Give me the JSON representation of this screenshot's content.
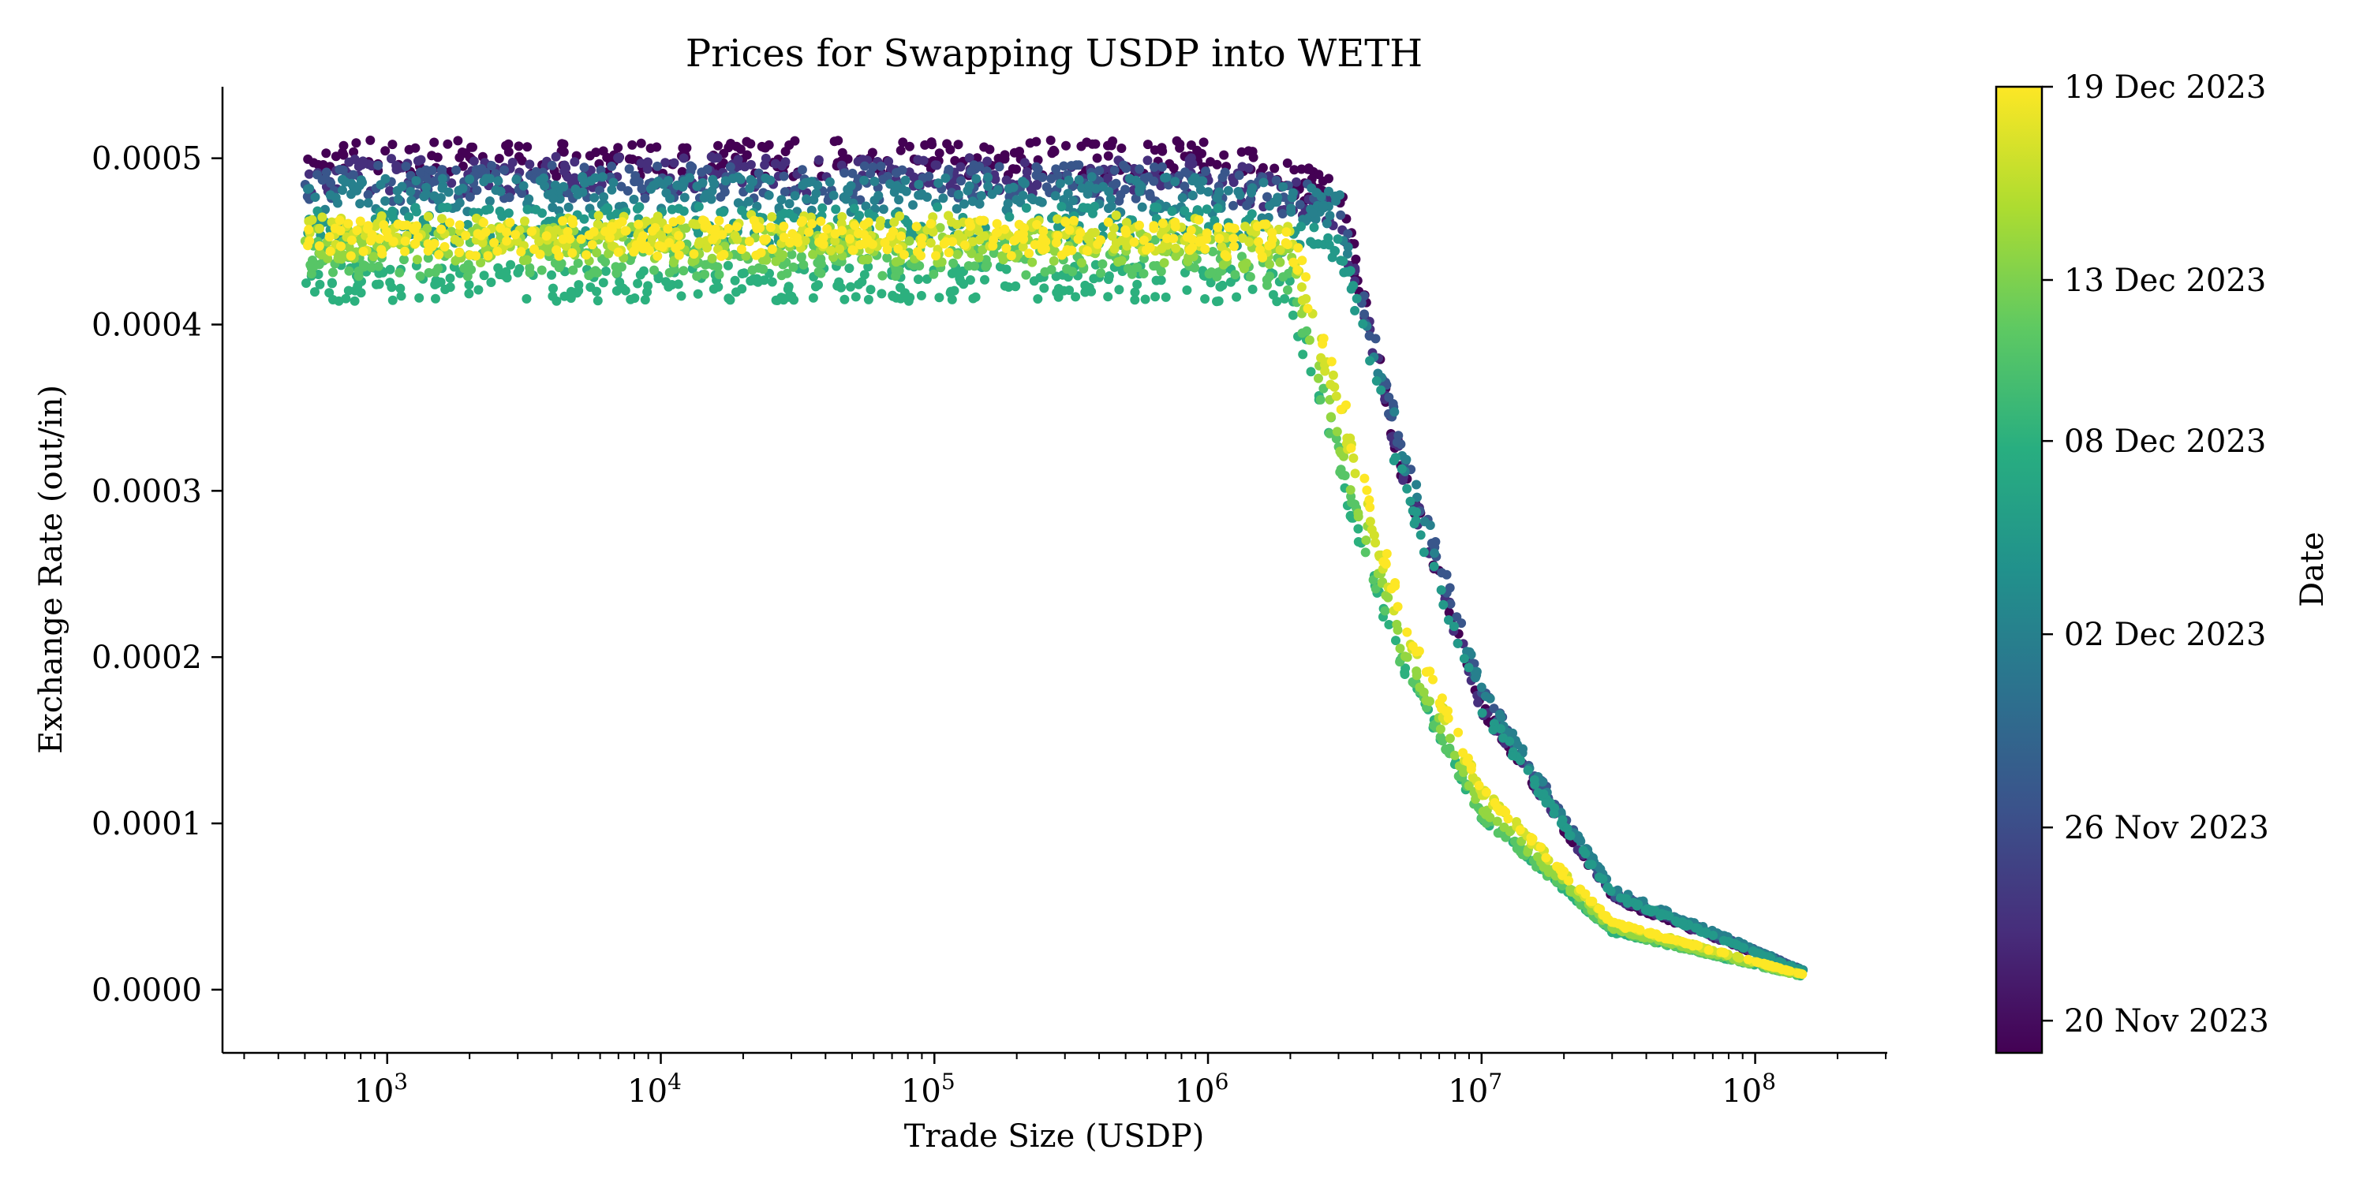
{
  "chart_data": {
    "type": "scatter",
    "title": "Prices for Swapping USDP into WETH",
    "xlabel": "Trade Size (USDP)",
    "ylabel": "Exchange Rate (out/in)",
    "xscale": "log",
    "xlim": [
      250,
      300000000
    ],
    "ylim": [
      -3.8e-05,
      0.000543
    ],
    "x_ticks": [
      {
        "value": 1000,
        "base": "10",
        "exp": "3"
      },
      {
        "value": 10000,
        "base": "10",
        "exp": "4"
      },
      {
        "value": 100000,
        "base": "10",
        "exp": "5"
      },
      {
        "value": 1000000,
        "base": "10",
        "exp": "6"
      },
      {
        "value": 10000000,
        "base": "10",
        "exp": "7"
      },
      {
        "value": 100000000,
        "base": "10",
        "exp": "8"
      }
    ],
    "y_ticks": [
      {
        "value": 0.0,
        "label": "0.0000"
      },
      {
        "value": 0.0001,
        "label": "0.0001"
      },
      {
        "value": 0.0002,
        "label": "0.0002"
      },
      {
        "value": 0.0003,
        "label": "0.0003"
      },
      {
        "value": 0.0004,
        "label": "0.0004"
      },
      {
        "value": 0.0005,
        "label": "0.0005"
      }
    ],
    "grid": false,
    "colormap": "viridis",
    "colorbar": {
      "label": "Date",
      "range": [
        "2023-11-19",
        "2023-12-19"
      ],
      "ticks": [
        {
          "date": "2023-11-20",
          "label": "20 Nov 2023"
        },
        {
          "date": "2023-11-26",
          "label": "26 Nov 2023"
        },
        {
          "date": "2023-12-02",
          "label": "02 Dec 2023"
        },
        {
          "date": "2023-12-08",
          "label": "08 Dec 2023"
        },
        {
          "date": "2023-12-13",
          "label": "13 Dec 2023"
        },
        {
          "date": "2023-12-19",
          "label": "19 Dec 2023"
        }
      ]
    },
    "series": [
      {
        "date": "2023-11-19",
        "rate": 0.0005,
        "knee": 3000000,
        "x": [
          500,
          1000,
          10000,
          100000,
          1000000,
          3000000,
          5000000,
          10000000,
          30000000,
          150000000
        ],
        "y": [
          0.0005,
          0.0005,
          0.0005,
          0.0005,
          0.0005,
          0.00048,
          0.00032,
          0.00017,
          5.5e-05,
          1.1e-05
        ]
      },
      {
        "date": "2023-11-23",
        "rate": 0.00049,
        "knee": 3100000,
        "x": [
          500,
          1000,
          10000,
          100000,
          1000000,
          3000000,
          5000000,
          10000000,
          30000000,
          150000000
        ],
        "y": [
          0.00049,
          0.00049,
          0.00049,
          0.00049,
          0.00049,
          0.00047,
          0.00032,
          0.00017,
          5.6e-05,
          1.1e-05
        ]
      },
      {
        "date": "2023-11-27",
        "rate": 0.000485,
        "knee": 3200000,
        "x": [
          500,
          1000,
          10000,
          100000,
          1000000,
          3000000,
          5000000,
          10000000,
          30000000,
          150000000
        ],
        "y": [
          0.000485,
          0.000485,
          0.000485,
          0.000485,
          0.000485,
          0.00047,
          0.00033,
          0.00018,
          5.8e-05,
          1.2e-05
        ]
      },
      {
        "date": "2023-12-02",
        "rate": 0.000478,
        "knee": 3300000,
        "x": [
          500,
          1000,
          10000,
          100000,
          1000000,
          3000000,
          5000000,
          10000000,
          30000000,
          150000000
        ],
        "y": [
          0.000478,
          0.000478,
          0.000478,
          0.000478,
          0.000478,
          0.00047,
          0.00033,
          0.00018,
          6e-05,
          1.2e-05
        ]
      },
      {
        "date": "2023-12-05",
        "rate": 0.00046,
        "knee": 3100000,
        "x": [
          500,
          1000,
          10000,
          100000,
          1000000,
          3000000,
          5000000,
          10000000,
          30000000,
          150000000
        ],
        "y": [
          0.00046,
          0.00046,
          0.00046,
          0.00046,
          0.00046,
          0.00045,
          0.00031,
          0.00017,
          5.7e-05,
          1.1e-05
        ]
      },
      {
        "date": "2023-12-08",
        "rate": 0.000425,
        "knee": 2300000,
        "x": [
          500,
          1000,
          10000,
          100000,
          1000000,
          2000000,
          3000000,
          5000000,
          10000000,
          30000000,
          150000000
        ],
        "y": [
          0.000425,
          0.000425,
          0.000425,
          0.000425,
          0.000425,
          0.00042,
          0.00031,
          0.0002,
          0.000105,
          3.5e-05,
          8e-06
        ]
      },
      {
        "date": "2023-12-11",
        "rate": 0.00044,
        "knee": 2300000,
        "x": [
          500,
          1000,
          10000,
          100000,
          1000000,
          2000000,
          3000000,
          5000000,
          10000000,
          30000000,
          150000000
        ],
        "y": [
          0.00044,
          0.00044,
          0.00044,
          0.00044,
          0.00044,
          0.00043,
          0.00032,
          0.0002,
          0.000105,
          3.5e-05,
          8e-06
        ]
      },
      {
        "date": "2023-12-14",
        "rate": 0.000448,
        "knee": 2500000,
        "x": [
          500,
          1000,
          10000,
          100000,
          1000000,
          2000000,
          3000000,
          5000000,
          10000000,
          30000000,
          150000000
        ],
        "y": [
          0.000448,
          0.000448,
          0.000448,
          0.000448,
          0.000448,
          0.00044,
          0.00033,
          0.00021,
          0.00011,
          3.7e-05,
          8e-06
        ]
      },
      {
        "date": "2023-12-17",
        "rate": 0.000455,
        "knee": 2600000,
        "x": [
          500,
          1000,
          10000,
          100000,
          1000000,
          2000000,
          3000000,
          5000000,
          10000000,
          30000000,
          150000000
        ],
        "y": [
          0.000455,
          0.000455,
          0.000455,
          0.000455,
          0.000455,
          0.00045,
          0.00035,
          0.00022,
          0.00012,
          4e-05,
          9e-06
        ]
      },
      {
        "date": "2023-12-19",
        "rate": 0.000452,
        "knee": 2700000,
        "x": [
          500,
          1000,
          10000,
          100000,
          1000000,
          2000000,
          3000000,
          5000000,
          10000000,
          30000000,
          150000000
        ],
        "y": [
          0.000452,
          0.000452,
          0.000452,
          0.000452,
          0.000452,
          0.00045,
          0.00036,
          0.00023,
          0.00012,
          4e-05,
          9e-06
        ]
      }
    ]
  }
}
